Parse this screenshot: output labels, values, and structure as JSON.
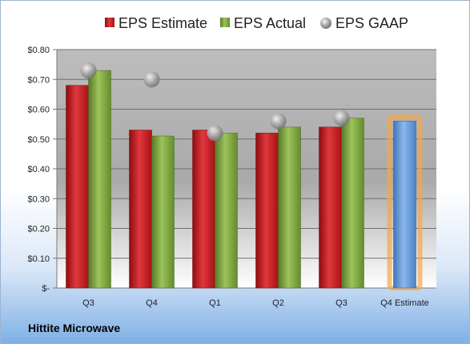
{
  "chart_data": {
    "type": "bar",
    "categories": [
      "Q3",
      "Q4",
      "Q1",
      "Q2",
      "Q3",
      "Q4 Estimate"
    ],
    "series": [
      {
        "name": "EPS Estimate",
        "values": [
          0.68,
          0.53,
          0.53,
          0.52,
          0.54,
          null
        ],
        "color": "#c0161b"
      },
      {
        "name": "EPS Actual",
        "values": [
          0.73,
          0.51,
          0.52,
          0.54,
          0.57,
          null
        ],
        "color": "#76a03a"
      },
      {
        "name": "EPS GAAP",
        "values": [
          0.73,
          0.7,
          0.52,
          0.56,
          0.57,
          null
        ],
        "color": "#a8a8a8"
      },
      {
        "name": "",
        "values": [
          null,
          null,
          null,
          null,
          null,
          0.56
        ],
        "color": "#5b93d6"
      }
    ],
    "ylim": [
      0,
      0.8
    ],
    "yticks": [
      {
        "value": 0.8,
        "label": "$0.80"
      },
      {
        "value": 0.7,
        "label": "$0.70"
      },
      {
        "value": 0.6,
        "label": "$0.60"
      },
      {
        "value": 0.5,
        "label": "$0.50"
      },
      {
        "value": 0.4,
        "label": "$0.40"
      },
      {
        "value": 0.3,
        "label": "$0.30"
      },
      {
        "value": 0.2,
        "label": "$0.20"
      },
      {
        "value": 0.1,
        "label": "$0.10"
      },
      {
        "value": 0.0,
        "label": "$-"
      }
    ],
    "grid": true,
    "legend_position": "top"
  },
  "company": "Hittite Microwave"
}
